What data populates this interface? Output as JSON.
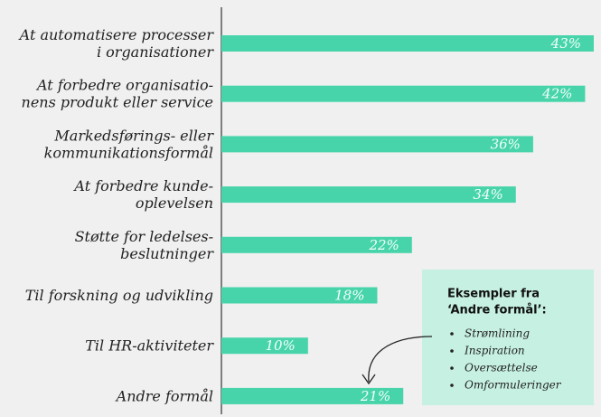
{
  "chart_data": {
    "type": "bar",
    "orientation": "horizontal",
    "categories": [
      [
        "At automatisere processer",
        "i organisationer"
      ],
      [
        "At forbedre organisatio-",
        "nens produkt eller service"
      ],
      [
        "Markedsførings- eller",
        "kommunikationsformål"
      ],
      [
        "At forbedre kunde-",
        "oplevelsen"
      ],
      [
        "Støtte for ledelses-",
        "beslutninger"
      ],
      [
        "Til forskning og udvikling"
      ],
      [
        "Til HR-aktiviteter"
      ],
      [
        "Andre formål"
      ]
    ],
    "values": [
      43,
      42,
      36,
      34,
      22,
      18,
      10,
      21
    ],
    "value_labels": [
      "43%",
      "42%",
      "36%",
      "34%",
      "22%",
      "18%",
      "10%",
      "21%"
    ],
    "color": "#48d4aa",
    "annotation": {
      "title": [
        "Eksempler fra",
        "‘Andre formål’:"
      ],
      "items": [
        "Strømlining",
        "Inspiration",
        "Oversættelse",
        "Omformuleringer"
      ]
    }
  }
}
